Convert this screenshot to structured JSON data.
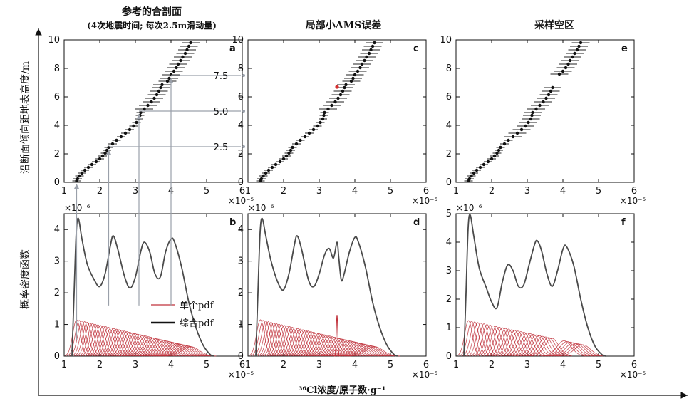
{
  "figure": {
    "titles": [
      "参考的合剖面",
      "(4次地震时间; 每次2.5m滑动量)",
      "局部小AMS误差",
      "采样空区"
    ],
    "top_ylabel": "沿断面倾向距地表高度/m",
    "bottom_ylabel": "概率密度函数",
    "xlabel": "³⁶Cl浓度/原子数·g⁻¹",
    "x_exponent": "×10⁻⁵",
    "y_exponent": "×10⁻⁶",
    "legend_single": "单个pdf",
    "legend_total": "综合pdf",
    "panel_letters": [
      "a",
      "b",
      "c",
      "d",
      "e",
      "f"
    ],
    "slip_labels": [
      "7.5",
      "5.0",
      "2.5"
    ]
  },
  "colors": {
    "total": "#4a4a4a",
    "single": "#c0303a",
    "point": "#111111",
    "arrow": "#9aa0aa",
    "highlight": "#d63030"
  },
  "chart_data": [
    {
      "type": "scatter",
      "panel": "a",
      "title": "参考的合剖面",
      "subtitle": "(4次地震时间; 每次2.5m滑动量)",
      "xlabel": "³⁶Cl浓度/原子数·g⁻¹",
      "ylabel": "沿断面倾向距地表高度/m",
      "x_scale": "1e-5",
      "xlim": [
        1,
        6
      ],
      "ylim": [
        0,
        10
      ],
      "xticks": [
        1,
        2,
        3,
        4,
        5,
        6
      ],
      "yticks": [
        0,
        2,
        4,
        6,
        8,
        10
      ],
      "annotations": [
        "7.5",
        "5.0",
        "2.5"
      ],
      "points": [
        [
          1.35,
          0.1
        ],
        [
          1.38,
          0.25
        ],
        [
          1.43,
          0.45
        ],
        [
          1.5,
          0.65
        ],
        [
          1.58,
          0.85
        ],
        [
          1.68,
          1.05
        ],
        [
          1.78,
          1.25
        ],
        [
          1.9,
          1.45
        ],
        [
          2.0,
          1.65
        ],
        [
          2.08,
          1.85
        ],
        [
          2.15,
          2.05
        ],
        [
          2.2,
          2.25
        ],
        [
          2.25,
          2.45
        ],
        [
          2.36,
          2.7
        ],
        [
          2.47,
          2.95
        ],
        [
          2.6,
          3.2
        ],
        [
          2.72,
          3.45
        ],
        [
          2.84,
          3.7
        ],
        [
          2.95,
          3.95
        ],
        [
          3.03,
          4.2
        ],
        [
          3.1,
          4.45
        ],
        [
          3.13,
          4.7
        ],
        [
          3.15,
          4.9
        ],
        [
          3.25,
          5.15
        ],
        [
          3.35,
          5.4
        ],
        [
          3.45,
          5.65
        ],
        [
          3.53,
          5.9
        ],
        [
          3.6,
          6.15
        ],
        [
          3.66,
          6.4
        ],
        [
          3.71,
          6.65
        ],
        [
          3.75,
          6.85
        ],
        [
          3.9,
          7.1
        ],
        [
          3.95,
          7.3
        ],
        [
          4.0,
          7.55
        ],
        [
          4.08,
          7.8
        ],
        [
          4.15,
          8.05
        ],
        [
          4.2,
          8.3
        ],
        [
          4.27,
          8.55
        ],
        [
          4.33,
          8.8
        ],
        [
          4.4,
          9.05
        ],
        [
          4.45,
          9.3
        ],
        [
          4.5,
          9.55
        ],
        [
          4.55,
          9.8
        ]
      ],
      "error_halfwidth": 0.25,
      "error_from_y": 5.0
    },
    {
      "type": "line",
      "panel": "b",
      "xlim": [
        1,
        6
      ],
      "ylim": [
        0,
        4.5
      ],
      "y_scale": "1e-6",
      "x_scale": "1e-5",
      "xticks": [
        1,
        2,
        3,
        4,
        5,
        6
      ],
      "yticks": [
        0,
        1,
        2,
        3,
        4
      ],
      "ylabel": "概率密度函数",
      "total": [
        [
          1.22,
          0
        ],
        [
          1.28,
          2.0
        ],
        [
          1.34,
          3.9
        ],
        [
          1.4,
          4.35
        ],
        [
          1.5,
          3.7
        ],
        [
          1.65,
          2.9
        ],
        [
          1.85,
          2.4
        ],
        [
          2.0,
          2.2
        ],
        [
          2.15,
          2.6
        ],
        [
          2.3,
          3.5
        ],
        [
          2.38,
          3.8
        ],
        [
          2.5,
          3.4
        ],
        [
          2.7,
          2.5
        ],
        [
          2.85,
          2.15
        ],
        [
          3.0,
          2.5
        ],
        [
          3.15,
          3.3
        ],
        [
          3.25,
          3.6
        ],
        [
          3.4,
          3.3
        ],
        [
          3.55,
          2.6
        ],
        [
          3.7,
          2.5
        ],
        [
          3.85,
          3.3
        ],
        [
          4.0,
          3.7
        ],
        [
          4.1,
          3.6
        ],
        [
          4.3,
          2.8
        ],
        [
          4.5,
          1.7
        ],
        [
          4.7,
          0.9
        ],
        [
          4.9,
          0.35
        ],
        [
          5.1,
          0.05
        ],
        [
          5.2,
          0
        ]
      ],
      "singles_peak": 1.15,
      "singles_count": 44,
      "singles_start": 1.35,
      "singles_end": 4.55,
      "singles_amp_end": 0.3
    },
    {
      "type": "scatter",
      "panel": "c",
      "title": "局部小AMS误差",
      "xlim": [
        1,
        6
      ],
      "ylim": [
        0,
        10
      ],
      "x_scale": "1e-5",
      "xticks": [
        1,
        2,
        3,
        4,
        5,
        6
      ],
      "yticks": [
        0,
        2,
        4,
        6,
        8,
        10
      ],
      "points": [
        [
          1.35,
          0.1
        ],
        [
          1.38,
          0.25
        ],
        [
          1.43,
          0.45
        ],
        [
          1.5,
          0.65
        ],
        [
          1.58,
          0.85
        ],
        [
          1.68,
          1.05
        ],
        [
          1.78,
          1.25
        ],
        [
          1.9,
          1.45
        ],
        [
          2.0,
          1.65
        ],
        [
          2.08,
          1.85
        ],
        [
          2.15,
          2.05
        ],
        [
          2.2,
          2.25
        ],
        [
          2.25,
          2.45
        ],
        [
          2.36,
          2.7
        ],
        [
          2.47,
          2.95
        ],
        [
          2.6,
          3.2
        ],
        [
          2.72,
          3.45
        ],
        [
          2.84,
          3.7
        ],
        [
          2.95,
          3.95
        ],
        [
          3.03,
          4.2
        ],
        [
          3.1,
          4.45
        ],
        [
          3.13,
          4.7
        ],
        [
          3.15,
          4.9
        ],
        [
          3.25,
          5.15
        ],
        [
          3.35,
          5.4
        ],
        [
          3.45,
          5.65
        ],
        [
          3.53,
          5.9
        ],
        [
          3.6,
          6.15
        ],
        [
          3.66,
          6.4
        ],
        [
          3.71,
          6.65
        ],
        [
          3.75,
          6.85
        ],
        [
          3.9,
          7.1
        ],
        [
          3.95,
          7.3
        ],
        [
          4.0,
          7.55
        ],
        [
          4.08,
          7.8
        ],
        [
          4.15,
          8.05
        ],
        [
          4.2,
          8.3
        ],
        [
          4.27,
          8.55
        ],
        [
          4.33,
          8.8
        ],
        [
          4.4,
          9.05
        ],
        [
          4.45,
          9.3
        ],
        [
          4.5,
          9.55
        ],
        [
          4.55,
          9.8
        ]
      ],
      "highlight": [
        3.5,
        6.7
      ],
      "error_halfwidth": 0.25,
      "error_from_y": 5.0
    },
    {
      "type": "line",
      "panel": "d",
      "xlim": [
        1,
        6
      ],
      "ylim": [
        0,
        4.5
      ],
      "y_scale": "1e-6",
      "x_scale": "1e-5",
      "xticks": [
        1,
        2,
        3,
        4,
        5,
        6
      ],
      "yticks": [
        0,
        1,
        2,
        3,
        4
      ],
      "total": [
        [
          1.22,
          0
        ],
        [
          1.28,
          2.0
        ],
        [
          1.34,
          3.9
        ],
        [
          1.4,
          4.35
        ],
        [
          1.5,
          3.8
        ],
        [
          1.65,
          3.0
        ],
        [
          1.85,
          2.3
        ],
        [
          2.0,
          2.1
        ],
        [
          2.15,
          2.6
        ],
        [
          2.3,
          3.5
        ],
        [
          2.38,
          3.8
        ],
        [
          2.5,
          3.4
        ],
        [
          2.7,
          2.4
        ],
        [
          2.85,
          2.2
        ],
        [
          3.0,
          2.6
        ],
        [
          3.15,
          3.2
        ],
        [
          3.28,
          3.4
        ],
        [
          3.4,
          3.1
        ],
        [
          3.5,
          3.6
        ],
        [
          3.55,
          3.1
        ],
        [
          3.62,
          2.4
        ],
        [
          3.7,
          2.6
        ],
        [
          3.85,
          3.3
        ],
        [
          4.0,
          3.75
        ],
        [
          4.1,
          3.6
        ],
        [
          4.3,
          2.8
        ],
        [
          4.5,
          1.7
        ],
        [
          4.7,
          0.9
        ],
        [
          4.9,
          0.35
        ],
        [
          5.1,
          0.05
        ],
        [
          5.2,
          0
        ]
      ],
      "singles_peak": 1.15,
      "singles_count": 44,
      "singles_start": 1.35,
      "singles_end": 4.55,
      "singles_amp_end": 0.3,
      "spike": [
        3.5,
        1.3
      ]
    },
    {
      "type": "scatter",
      "panel": "e",
      "title": "采样空区",
      "xlim": [
        1,
        6
      ],
      "ylim": [
        0,
        10
      ],
      "x_scale": "1e-5",
      "xticks": [
        1,
        2,
        3,
        4,
        5,
        6
      ],
      "yticks": [
        0,
        2,
        4,
        6,
        8,
        10
      ],
      "points": [
        [
          1.35,
          0.1
        ],
        [
          1.38,
          0.25
        ],
        [
          1.43,
          0.45
        ],
        [
          1.5,
          0.65
        ],
        [
          1.58,
          0.85
        ],
        [
          1.68,
          1.05
        ],
        [
          1.78,
          1.25
        ],
        [
          1.9,
          1.45
        ],
        [
          2.0,
          1.65
        ],
        [
          2.08,
          1.85
        ],
        [
          2.15,
          2.05
        ],
        [
          2.2,
          2.25
        ],
        [
          2.25,
          2.45
        ],
        [
          2.36,
          2.7
        ],
        [
          2.47,
          2.95
        ],
        [
          2.6,
          3.2
        ],
        [
          2.72,
          3.45
        ],
        [
          2.84,
          3.7
        ],
        [
          2.95,
          3.95
        ],
        [
          3.03,
          4.2
        ],
        [
          3.1,
          4.45
        ],
        [
          3.13,
          4.7
        ],
        [
          3.15,
          4.9
        ],
        [
          3.25,
          5.15
        ],
        [
          3.35,
          5.4
        ],
        [
          3.45,
          5.65
        ],
        [
          3.53,
          5.9
        ],
        [
          3.6,
          6.15
        ],
        [
          3.66,
          6.4
        ],
        [
          3.71,
          6.65
        ],
        [
          3.9,
          7.6
        ],
        [
          4.0,
          7.8
        ],
        [
          4.08,
          8.05
        ],
        [
          4.15,
          8.3
        ],
        [
          4.2,
          8.55
        ],
        [
          4.27,
          8.8
        ],
        [
          4.33,
          9.05
        ],
        [
          4.4,
          9.3
        ],
        [
          4.45,
          9.55
        ],
        [
          4.5,
          9.8
        ]
      ],
      "error_halfwidth": 0.25,
      "error_from_y": 3.0
    },
    {
      "type": "line",
      "panel": "f",
      "xlim": [
        1,
        6
      ],
      "ylim": [
        0,
        5
      ],
      "y_scale": "1e-6",
      "x_scale": "1e-5",
      "xticks": [
        1,
        2,
        3,
        4,
        5,
        6
      ],
      "yticks": [
        0,
        1,
        2,
        3,
        4,
        5
      ],
      "total": [
        [
          1.22,
          0
        ],
        [
          1.28,
          2.2
        ],
        [
          1.34,
          4.5
        ],
        [
          1.4,
          4.95
        ],
        [
          1.5,
          4.2
        ],
        [
          1.65,
          3.1
        ],
        [
          1.85,
          2.4
        ],
        [
          2.0,
          1.9
        ],
        [
          2.15,
          1.7
        ],
        [
          2.3,
          2.6
        ],
        [
          2.45,
          3.2
        ],
        [
          2.6,
          3.0
        ],
        [
          2.75,
          2.45
        ],
        [
          2.9,
          2.5
        ],
        [
          3.05,
          3.2
        ],
        [
          3.2,
          3.9
        ],
        [
          3.28,
          4.05
        ],
        [
          3.4,
          3.7
        ],
        [
          3.55,
          2.9
        ],
        [
          3.7,
          2.45
        ],
        [
          3.85,
          3.0
        ],
        [
          4.0,
          3.75
        ],
        [
          4.1,
          3.85
        ],
        [
          4.3,
          3.2
        ],
        [
          4.5,
          2.0
        ],
        [
          4.7,
          1.0
        ],
        [
          4.9,
          0.35
        ],
        [
          5.1,
          0.05
        ],
        [
          5.2,
          0
        ]
      ],
      "singles_peak": 1.25,
      "singles_count": 38,
      "singles_start": 1.35,
      "singles_end": 4.55,
      "singles_amp_end": 0.4,
      "gap": [
        3.72,
        3.95
      ]
    }
  ]
}
